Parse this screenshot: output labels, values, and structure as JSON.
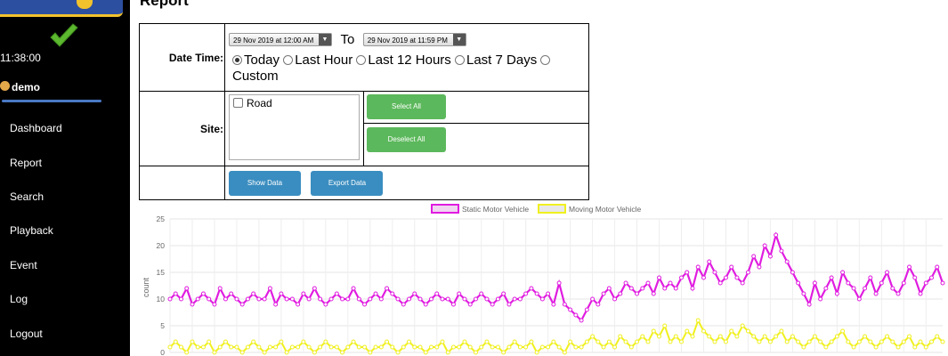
{
  "sidebar": {
    "clock": "11:38:00",
    "user": "demo",
    "items": [
      {
        "label": "Dashboard",
        "name": "dashboard"
      },
      {
        "label": "Report",
        "name": "report"
      },
      {
        "label": "Search",
        "name": "search"
      },
      {
        "label": "Playback",
        "name": "playback"
      },
      {
        "label": "Event",
        "name": "event"
      },
      {
        "label": "Log",
        "name": "log"
      },
      {
        "label": "Logout",
        "name": "logout"
      }
    ]
  },
  "page": {
    "title": "Report"
  },
  "form": {
    "date_time_label": "Date Time:",
    "from_value": "29 Nov 2019 at 12:00 AM",
    "to_label": "To",
    "to_value": "29 Nov 2019 at 11:59 PM",
    "ranges": [
      "Today",
      "Last Hour",
      "Last 12 Hours",
      "Last 7 Days",
      "Custom"
    ],
    "selected_range": "Today",
    "site_label": "Site:",
    "sites": [
      {
        "label": "Road",
        "checked": false
      }
    ],
    "select_all": "Select All",
    "deselect_all": "Deselect All",
    "show_data": "Show Data",
    "export_data": "Export Data"
  },
  "icons": {
    "status": "checkmark-icon",
    "user": "user-avatar-icon"
  },
  "colors": {
    "sidebar_bg": "#000000",
    "checkmark": "#5cb82e",
    "static": "#e01ce0",
    "moving": "#f0f020",
    "btn_green": "#5cb85c",
    "btn_blue": "#3a8dc0"
  },
  "chart_data": {
    "type": "line",
    "ylabel": "count",
    "ylim": [
      0,
      25
    ],
    "yticks": [
      0,
      5,
      10,
      15,
      20,
      25
    ],
    "legend_position": "top",
    "grid": true,
    "series": [
      {
        "name": "Static Motor Vehicle",
        "color": "#e01ce0",
        "values": [
          10,
          11,
          10,
          12,
          9,
          10,
          11,
          10,
          9,
          12,
          10,
          11,
          10,
          9,
          10,
          11,
          10,
          10,
          12,
          9,
          11,
          10,
          10,
          9,
          11,
          10,
          12,
          10,
          9,
          10,
          11,
          10,
          10,
          12,
          10,
          9,
          10,
          11,
          10,
          12,
          11,
          10,
          9,
          10,
          11,
          10,
          9,
          10,
          11,
          10,
          10,
          9,
          11,
          10,
          9,
          10,
          11,
          10,
          9,
          10,
          11,
          9,
          10,
          10,
          11,
          12,
          11,
          10,
          11,
          9,
          13,
          9,
          8,
          7,
          6,
          8,
          10,
          9,
          11,
          12,
          10,
          11,
          13,
          12,
          11,
          12,
          13,
          11,
          14,
          12,
          13,
          12,
          14,
          15,
          12,
          16,
          14,
          17,
          15,
          13,
          14,
          16,
          14,
          13,
          15,
          18,
          16,
          20,
          18,
          22,
          19,
          17,
          15,
          13,
          11,
          9,
          13,
          10,
          12,
          14,
          11,
          15,
          13,
          12,
          10,
          12,
          14,
          11,
          13,
          15,
          12,
          11,
          13,
          16,
          14,
          11,
          13,
          14,
          16,
          13
        ]
      },
      {
        "name": "Moving Motor Vehicle",
        "color": "#f0f020",
        "values": [
          1,
          2,
          1,
          0,
          2,
          1,
          1,
          2,
          0,
          1,
          2,
          1,
          1,
          0,
          1,
          2,
          1,
          0,
          1,
          1,
          2,
          0,
          1,
          1,
          2,
          1,
          0,
          1,
          2,
          1,
          1,
          0,
          1,
          2,
          1,
          1,
          0,
          1,
          1,
          2,
          1,
          0,
          1,
          2,
          1,
          1,
          0,
          1,
          1,
          2,
          0,
          1,
          1,
          2,
          1,
          0,
          1,
          2,
          1,
          1,
          0,
          1,
          2,
          1,
          1,
          2,
          0,
          1,
          1,
          2,
          1,
          0,
          2,
          1,
          1,
          2,
          3,
          2,
          1,
          2,
          1,
          3,
          2,
          1,
          2,
          3,
          2,
          4,
          3,
          5,
          2,
          3,
          2,
          4,
          3,
          6,
          4,
          3,
          2,
          3,
          2,
          4,
          3,
          5,
          4,
          3,
          2,
          3,
          2,
          3,
          4,
          2,
          3,
          2,
          1,
          2,
          3,
          2,
          1,
          2,
          3,
          4,
          2,
          1,
          2,
          3,
          2,
          1,
          2,
          3,
          2,
          1,
          2,
          3,
          1,
          2,
          1,
          2,
          3,
          2
        ]
      }
    ]
  }
}
